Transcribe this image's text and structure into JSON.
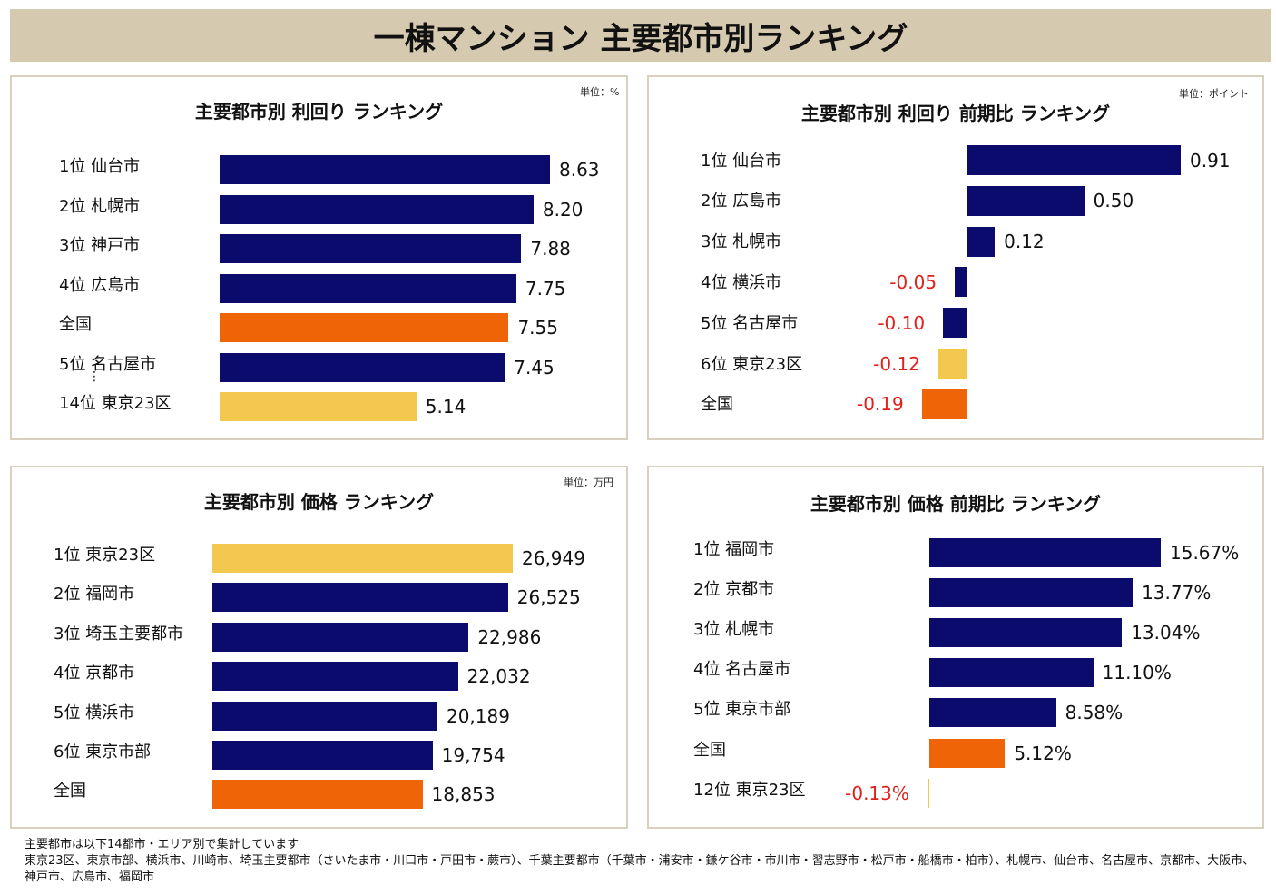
{
  "title": "一棟マンション 主要都市別ランキング",
  "colors": {
    "navy": "#0b0b6e",
    "orange": "#ee6406",
    "yellow": "#f2c84f",
    "negative_text": "#e0201a"
  },
  "chart_data": [
    {
      "type": "bar",
      "orientation": "horizontal",
      "title": "主要都市別 利回り ランキング",
      "unit": "単位：%",
      "categories": [
        "1位 仙台市",
        "2位 札幌市",
        "3位 神戸市",
        "4位 広島市",
        "全国",
        "5位 名古屋市",
        "14位 東京23区"
      ],
      "values": [
        8.63,
        8.2,
        7.88,
        7.75,
        7.55,
        7.45,
        5.14
      ],
      "value_labels": [
        "8.63",
        "8.20",
        "7.88",
        "7.75",
        "7.55",
        "7.45",
        "5.14"
      ],
      "bar_colors": [
        "navy",
        "navy",
        "navy",
        "navy",
        "orange",
        "navy",
        "yellow"
      ],
      "ellipsis": "⋮"
    },
    {
      "type": "bar",
      "orientation": "horizontal",
      "title": "主要都市別 利回り 前期比 ランキング",
      "unit": "単位：ポイント",
      "categories": [
        "1位 仙台市",
        "2位 広島市",
        "3位 札幌市",
        "4位 横浜市",
        "5位 名古屋市",
        "6位 東京23区",
        "全国"
      ],
      "values": [
        0.91,
        0.5,
        0.12,
        -0.05,
        -0.1,
        -0.12,
        -0.19
      ],
      "value_labels": [
        "0.91",
        "0.50",
        "0.12",
        "-0.05",
        "-0.10",
        "-0.12",
        "-0.19"
      ],
      "bar_colors": [
        "navy",
        "navy",
        "navy",
        "navy",
        "navy",
        "yellow",
        "orange"
      ]
    },
    {
      "type": "bar",
      "orientation": "horizontal",
      "title": "主要都市別 価格 ランキング",
      "unit": "単位：万円",
      "categories": [
        "1位 東京23区",
        "2位 福岡市",
        "3位 埼玉主要都市",
        "4位 京都市",
        "5位 横浜市",
        "6位 東京市部",
        "全国"
      ],
      "values": [
        26949,
        26525,
        22986,
        22032,
        20189,
        19754,
        18853
      ],
      "value_labels": [
        "26,949",
        "26,525",
        "22,986",
        "22,032",
        "20,189",
        "19,754",
        "18,853"
      ],
      "bar_colors": [
        "yellow",
        "navy",
        "navy",
        "navy",
        "navy",
        "navy",
        "orange"
      ]
    },
    {
      "type": "bar",
      "orientation": "horizontal",
      "title": "主要都市別 価格 前期比 ランキング",
      "categories": [
        "1位 福岡市",
        "2位 京都市",
        "3位 札幌市",
        "4位 名古屋市",
        "5位 東京市部",
        "全国",
        "12位 東京23区"
      ],
      "values": [
        15.67,
        13.77,
        13.04,
        11.1,
        8.58,
        5.12,
        -0.13
      ],
      "value_labels": [
        "15.67%",
        "13.77%",
        "13.04%",
        "11.10%",
        "8.58%",
        "5.12%",
        "-0.13%"
      ],
      "bar_colors": [
        "navy",
        "navy",
        "navy",
        "navy",
        "navy",
        "orange",
        "yellow"
      ]
    }
  ],
  "footnote": {
    "line1": "主要都市は以下14都市・エリア別で集計しています",
    "line2": "東京23区、東京市部、横浜市、川崎市、埼玉主要都市（さいたま市・川口市・戸田市・蕨市）、千葉主要都市（千葉市・浦安市・鎌ケ谷市・市川市・習志野市・松戸市・船橋市・柏市）、札幌市、仙台市、名古屋市、京都市、大阪市、神戸市、広島市、福岡市"
  }
}
